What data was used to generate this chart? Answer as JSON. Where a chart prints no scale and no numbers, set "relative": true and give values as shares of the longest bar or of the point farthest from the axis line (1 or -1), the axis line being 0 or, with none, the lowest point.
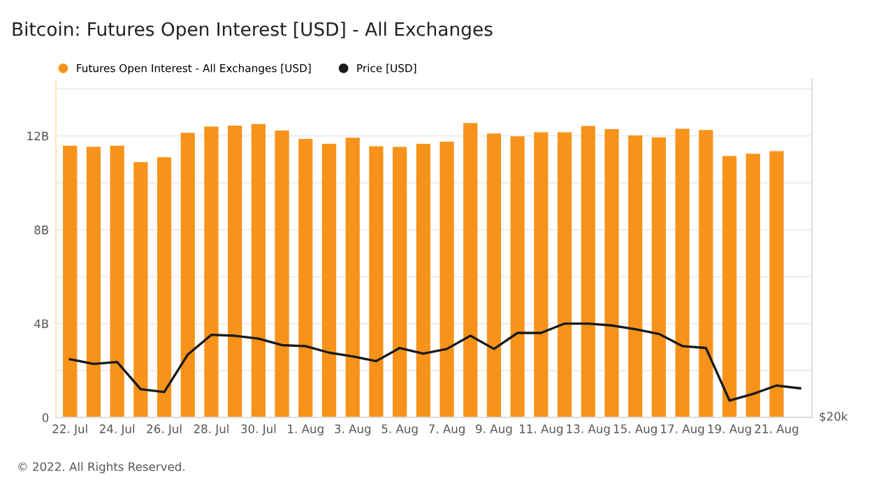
{
  "chart_data": [
    {
      "type": "bar",
      "title": "Bitcoin: Futures Open Interest [USD] - All Exchanges",
      "categories": [
        "22. Jul",
        null,
        "24. Jul",
        null,
        "26. Jul",
        null,
        "28. Jul",
        null,
        "30. Jul",
        null,
        "1. Aug",
        null,
        "3. Aug",
        null,
        "5. Aug",
        null,
        "7. Aug",
        null,
        "9. Aug",
        null,
        "11. Aug",
        null,
        "13. Aug",
        null,
        "15. Aug",
        null,
        "17. Aug",
        null,
        "19. Aug",
        null,
        "21. Aug",
        null
      ],
      "series": [
        {
          "name": "Futures Open Interest - All Exchanges [USD]",
          "type": "bar",
          "color": "#f7931a",
          "values": [
            11.58,
            11.54,
            11.58,
            10.88,
            11.09,
            12.13,
            12.4,
            12.44,
            12.5,
            12.23,
            11.87,
            11.66,
            11.92,
            11.56,
            11.53,
            11.66,
            11.75,
            12.55,
            12.1,
            11.98,
            12.15,
            12.15,
            12.42,
            12.29,
            12.02,
            11.94,
            12.3,
            12.25,
            11.14,
            11.24,
            11.35,
            null
          ]
        }
      ],
      "ylim": [
        0,
        14.4
      ],
      "yticks": [
        {
          "value": 0,
          "label": "0"
        },
        {
          "value": 2,
          "label": null
        },
        {
          "value": 4,
          "label": "4B"
        },
        {
          "value": 6,
          "label": null
        },
        {
          "value": 8,
          "label": "8B"
        },
        {
          "value": 10,
          "label": null
        },
        {
          "value": 12,
          "label": "12B"
        },
        {
          "value": 14,
          "label": null
        }
      ],
      "grid": "y",
      "legend": "top left",
      "annotations": [
        "© 2022. All Rights Reserved."
      ]
    },
    {
      "type": "line",
      "relative": true,
      "categories": [
        null,
        null,
        null,
        null,
        null,
        null,
        null,
        null,
        null,
        null,
        null,
        null,
        null,
        null,
        null,
        null,
        null,
        null,
        null,
        null,
        null,
        null,
        null,
        null,
        null,
        null,
        null,
        null,
        null,
        null,
        null,
        null
      ],
      "series": [
        {
          "name": "Price [USD]",
          "color": "#1a1a1a",
          "values": [
            0.62,
            0.57,
            0.59,
            0.3,
            0.27,
            0.67,
            0.88,
            0.87,
            0.84,
            0.77,
            0.76,
            0.69,
            0.65,
            0.6,
            0.74,
            0.68,
            0.73,
            0.87,
            0.73,
            0.9,
            0.9,
            1,
            1,
            0.98,
            0.94,
            0.89,
            0.76,
            0.74,
            0.18,
            0.25,
            0.34,
            0.31
          ]
        }
      ],
      "legend": "top left",
      "annotations": [
        "$20k"
      ]
    }
  ]
}
